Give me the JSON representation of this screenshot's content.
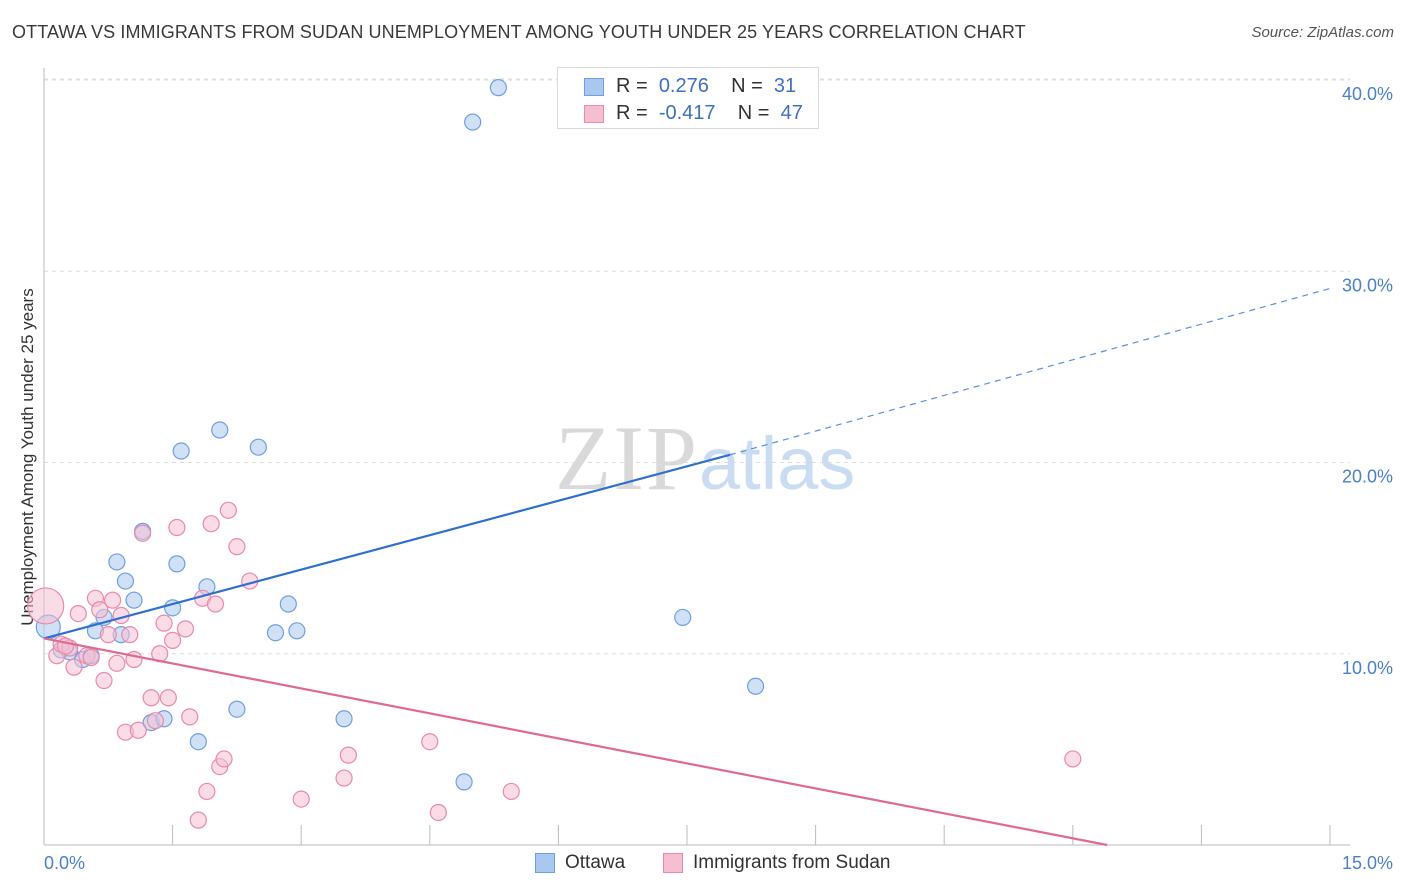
{
  "title": "OTTAWA VS IMMIGRANTS FROM SUDAN UNEMPLOYMENT AMONG YOUTH UNDER 25 YEARS CORRELATION CHART",
  "source": "Source: ZipAtlas.com",
  "watermark": {
    "zip": "ZIP",
    "atlas": "atlas"
  },
  "legend": {
    "rows": [
      {
        "r_label": "R =",
        "r_value": "0.276",
        "n_label": "N =",
        "n_value": "31",
        "color": "#a9c8ef",
        "border": "#6f9fe0"
      },
      {
        "r_label": "R =",
        "r_value": "-0.417",
        "n_label": "N =",
        "n_value": "47",
        "color": "#f6bfd1",
        "border": "#e98aab"
      }
    ]
  },
  "bottom_legend": [
    {
      "label": "Ottawa",
      "color": "#a9c8ef",
      "border": "#6f9fe0"
    },
    {
      "label": "Immigrants from Sudan",
      "color": "#f6bfd1",
      "border": "#e98aab"
    }
  ],
  "chart_data": {
    "type": "scatter",
    "title": "OTTAWA VS IMMIGRANTS FROM SUDAN UNEMPLOYMENT AMONG YOUTH UNDER 25 YEARS CORRELATION CHART",
    "xlabel": "",
    "ylabel": "Unemployment Among Youth under 25 years",
    "xlim": [
      0,
      15
    ],
    "ylim": [
      0,
      40
    ],
    "x_tick_labels": [
      "0.0%",
      "15.0%"
    ],
    "y_ticks": [
      10,
      20,
      30,
      40
    ],
    "y_tick_labels": [
      "10.0%",
      "20.0%",
      "30.0%",
      "40.0%"
    ],
    "grid": true,
    "legend_position": "top-center",
    "series": [
      {
        "name": "Ottawa",
        "color": "#6f9fe0",
        "fill": "#a9c8ef",
        "points": [
          [
            0.05,
            11.4
          ],
          [
            0.2,
            10.2
          ],
          [
            0.3,
            10.1
          ],
          [
            0.45,
            9.7
          ],
          [
            0.55,
            9.9
          ],
          [
            0.6,
            11.2
          ],
          [
            0.7,
            11.9
          ],
          [
            0.85,
            14.8
          ],
          [
            0.95,
            13.8
          ],
          [
            1.05,
            12.8
          ],
          [
            1.15,
            16.4
          ],
          [
            1.25,
            6.4
          ],
          [
            1.4,
            6.6
          ],
          [
            1.5,
            12.4
          ],
          [
            1.55,
            14.7
          ],
          [
            1.6,
            20.6
          ],
          [
            1.8,
            5.4
          ],
          [
            1.9,
            13.5
          ],
          [
            2.05,
            21.7
          ],
          [
            2.25,
            7.1
          ],
          [
            2.5,
            20.8
          ],
          [
            2.7,
            11.1
          ],
          [
            2.85,
            12.6
          ],
          [
            2.95,
            11.2
          ],
          [
            3.5,
            6.6
          ],
          [
            4.9,
            3.3
          ],
          [
            5.0,
            37.8
          ],
          [
            5.3,
            39.6
          ],
          [
            7.45,
            11.9
          ],
          [
            8.3,
            8.3
          ],
          [
            0.9,
            11.0
          ]
        ],
        "trend": {
          "x": [
            0,
            8.0
          ],
          "y": [
            10.8,
            20.4
          ],
          "dashed_to": [
            15,
            29.1
          ]
        }
      },
      {
        "name": "Immigrants from Sudan",
        "color": "#e98aab",
        "fill": "#f6bfd1",
        "points": [
          [
            0.02,
            12.5
          ],
          [
            0.15,
            9.9
          ],
          [
            0.2,
            10.5
          ],
          [
            0.3,
            10.3
          ],
          [
            0.35,
            9.3
          ],
          [
            0.4,
            12.1
          ],
          [
            0.5,
            9.9
          ],
          [
            0.55,
            9.8
          ],
          [
            0.6,
            12.9
          ],
          [
            0.65,
            12.3
          ],
          [
            0.7,
            8.6
          ],
          [
            0.8,
            12.8
          ],
          [
            0.85,
            9.5
          ],
          [
            0.9,
            12.0
          ],
          [
            0.95,
            5.9
          ],
          [
            1.0,
            11.0
          ],
          [
            1.05,
            9.7
          ],
          [
            1.1,
            6.0
          ],
          [
            1.15,
            16.3
          ],
          [
            1.25,
            7.7
          ],
          [
            1.3,
            6.5
          ],
          [
            1.35,
            10.0
          ],
          [
            1.4,
            11.6
          ],
          [
            1.45,
            7.7
          ],
          [
            1.5,
            10.7
          ],
          [
            1.55,
            16.6
          ],
          [
            1.65,
            11.3
          ],
          [
            1.7,
            6.7
          ],
          [
            1.8,
            1.3
          ],
          [
            1.85,
            12.9
          ],
          [
            1.9,
            2.8
          ],
          [
            1.95,
            16.8
          ],
          [
            2.0,
            12.6
          ],
          [
            2.05,
            4.1
          ],
          [
            2.1,
            4.5
          ],
          [
            2.15,
            17.5
          ],
          [
            2.25,
            15.6
          ],
          [
            2.4,
            13.8
          ],
          [
            3.0,
            2.4
          ],
          [
            3.5,
            3.5
          ],
          [
            3.55,
            4.7
          ],
          [
            4.5,
            5.4
          ],
          [
            4.6,
            1.7
          ],
          [
            5.45,
            2.8
          ],
          [
            12.0,
            4.5
          ],
          [
            0.25,
            10.4
          ],
          [
            0.75,
            11.0
          ]
        ],
        "trend": {
          "x": [
            0,
            15
          ],
          "y": [
            10.8,
            0.0
          ]
        }
      }
    ]
  }
}
